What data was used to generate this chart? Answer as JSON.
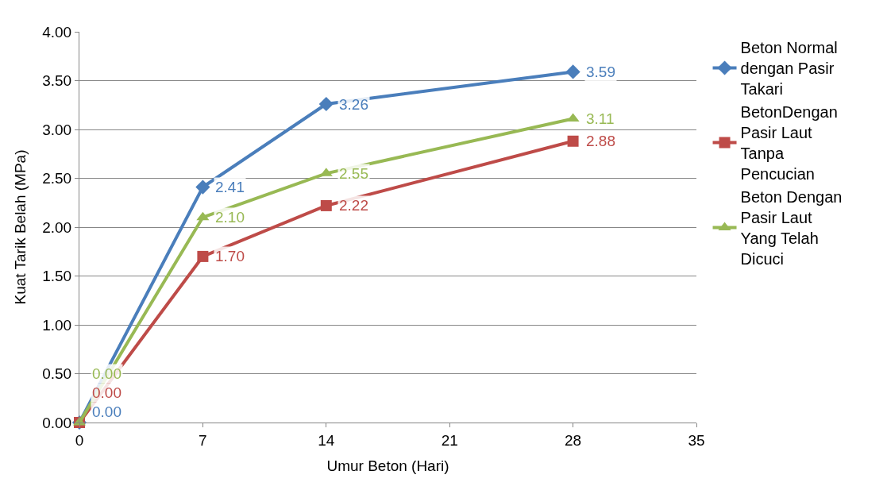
{
  "chart_data": {
    "type": "line",
    "xlabel": "Umur Beton (Hari)",
    "ylabel": "Kuat Tarik Belah (MPa)",
    "x": [
      0,
      7,
      14,
      28
    ],
    "series": [
      {
        "name": "Beton Normal dengan Pasir Takari",
        "color": "#4a7ebb",
        "marker": "diamond",
        "values": [
          0.0,
          2.41,
          3.26,
          3.59
        ],
        "value_labels": [
          "0.00",
          "2.41",
          "3.26",
          "3.59"
        ]
      },
      {
        "name": "BetonDengan Pasir Laut Tanpa Pencucian",
        "color": "#be4b48",
        "marker": "square",
        "values": [
          0.0,
          1.7,
          2.22,
          2.88
        ],
        "value_labels": [
          "0.00",
          "1.70",
          "2.22",
          "2.88"
        ]
      },
      {
        "name": "Beton Dengan Pasir Laut Yang Telah Dicuci",
        "color": "#98b954",
        "marker": "triangle",
        "values": [
          0.0,
          2.1,
          2.55,
          3.11
        ],
        "value_labels": [
          "0.00",
          "2.10",
          "2.55",
          "3.11"
        ]
      }
    ],
    "xlim": [
      0,
      35
    ],
    "xticks": [
      0,
      7,
      14,
      21,
      28,
      35
    ],
    "ylim": [
      0,
      4
    ],
    "yticks": [
      {
        "value": 0,
        "label": "0.00"
      },
      {
        "value": 0.5,
        "label": "0.50"
      },
      {
        "value": 1,
        "label": "1.00"
      },
      {
        "value": 1.5,
        "label": "1.50"
      },
      {
        "value": 2,
        "label": "2.00"
      },
      {
        "value": 2.5,
        "label": "2.50"
      },
      {
        "value": 3,
        "label": "3.00"
      },
      {
        "value": 3.5,
        "label": "3.50"
      },
      {
        "value": 4,
        "label": "4.00"
      }
    ],
    "grid": "y",
    "legend": "right",
    "line_style": "solid"
  }
}
